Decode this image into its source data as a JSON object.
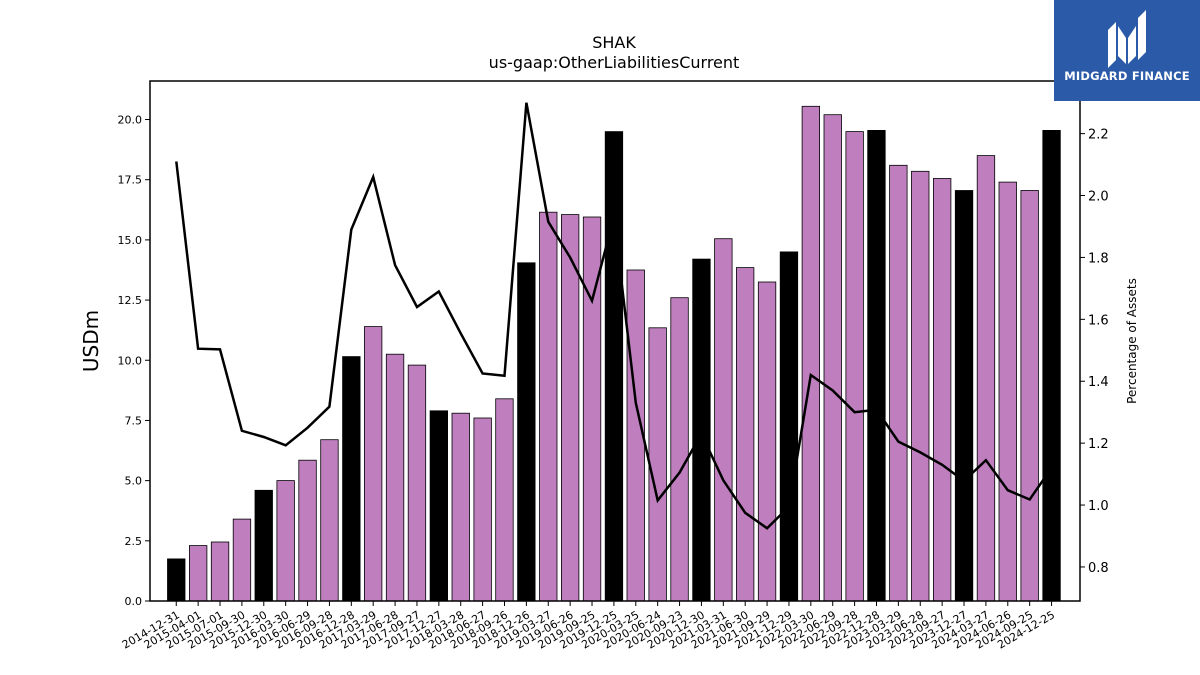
{
  "chart_data": {
    "type": "bar",
    "title": "SHAK",
    "subtitle": "us-gaap:OtherLiabilitiesCurrent",
    "ylabel": "USDm",
    "y2label": "Percentage of Assets",
    "ylim": [
      0,
      21.6
    ],
    "y2lim": [
      0.69,
      2.37
    ],
    "yticks": [
      "0.0",
      "2.5",
      "5.0",
      "7.5",
      "10.0",
      "12.5",
      "15.0",
      "17.5",
      "20.0"
    ],
    "y2ticks": [
      "0.8",
      "1.0",
      "1.2",
      "1.4",
      "1.6",
      "1.8",
      "2.0",
      "2.2"
    ],
    "grid": false,
    "categories": [
      "2014-12-31",
      "2015-04-01",
      "2015-07-01",
      "2015-09-30",
      "2015-12-30",
      "2016-03-30",
      "2016-06-29",
      "2016-09-28",
      "2016-12-28",
      "2017-03-29",
      "2017-06-28",
      "2017-09-27",
      "2017-12-27",
      "2018-03-28",
      "2018-06-27",
      "2018-09-26",
      "2018-12-26",
      "2019-03-27",
      "2019-06-26",
      "2019-09-25",
      "2019-12-25",
      "2020-03-25",
      "2020-06-24",
      "2020-09-23",
      "2020-12-30",
      "2021-03-31",
      "2021-06-30",
      "2021-09-29",
      "2021-12-29",
      "2022-03-30",
      "2022-06-29",
      "2022-09-28",
      "2022-12-28",
      "2023-03-29",
      "2023-06-28",
      "2023-09-27",
      "2023-12-27",
      "2024-03-27",
      "2024-06-26",
      "2024-09-25",
      "2024-12-25"
    ],
    "series": [
      {
        "kind": "bar",
        "values": [
          1.75,
          2.3,
          2.45,
          3.4,
          4.6,
          5.0,
          5.85,
          6.7,
          10.15,
          11.4,
          10.25,
          9.8,
          7.9,
          7.8,
          7.6,
          8.4,
          14.05,
          16.15,
          16.05,
          15.95,
          19.5,
          13.75,
          11.35,
          12.6,
          14.2,
          15.05,
          13.85,
          13.25,
          14.5,
          20.55,
          20.2,
          19.5,
          19.55,
          18.1,
          17.85,
          17.55,
          17.05,
          18.5,
          17.4,
          17.05,
          19.55
        ]
      },
      {
        "kind": "line",
        "axis": "right",
        "values": [
          2.11,
          1.505,
          1.503,
          1.24,
          1.22,
          1.193,
          1.25,
          1.318,
          1.89,
          2.06,
          1.775,
          1.64,
          1.69,
          1.555,
          1.425,
          1.418,
          2.3,
          1.915,
          1.8,
          1.66,
          1.93,
          1.33,
          1.015,
          1.105,
          1.23,
          1.08,
          0.975,
          0.925,
          0.995,
          1.42,
          1.37,
          1.3,
          1.308,
          1.205,
          1.17,
          1.13,
          1.078,
          1.145,
          1.048,
          1.018,
          1.12
        ]
      }
    ],
    "colors": {
      "bar_regular": "#bf7fbf",
      "bar_year_end": "#000000",
      "line": "#000000"
    }
  },
  "logo": {
    "text": "MIDGARD FINANCE",
    "background": "#2a5aa8"
  }
}
